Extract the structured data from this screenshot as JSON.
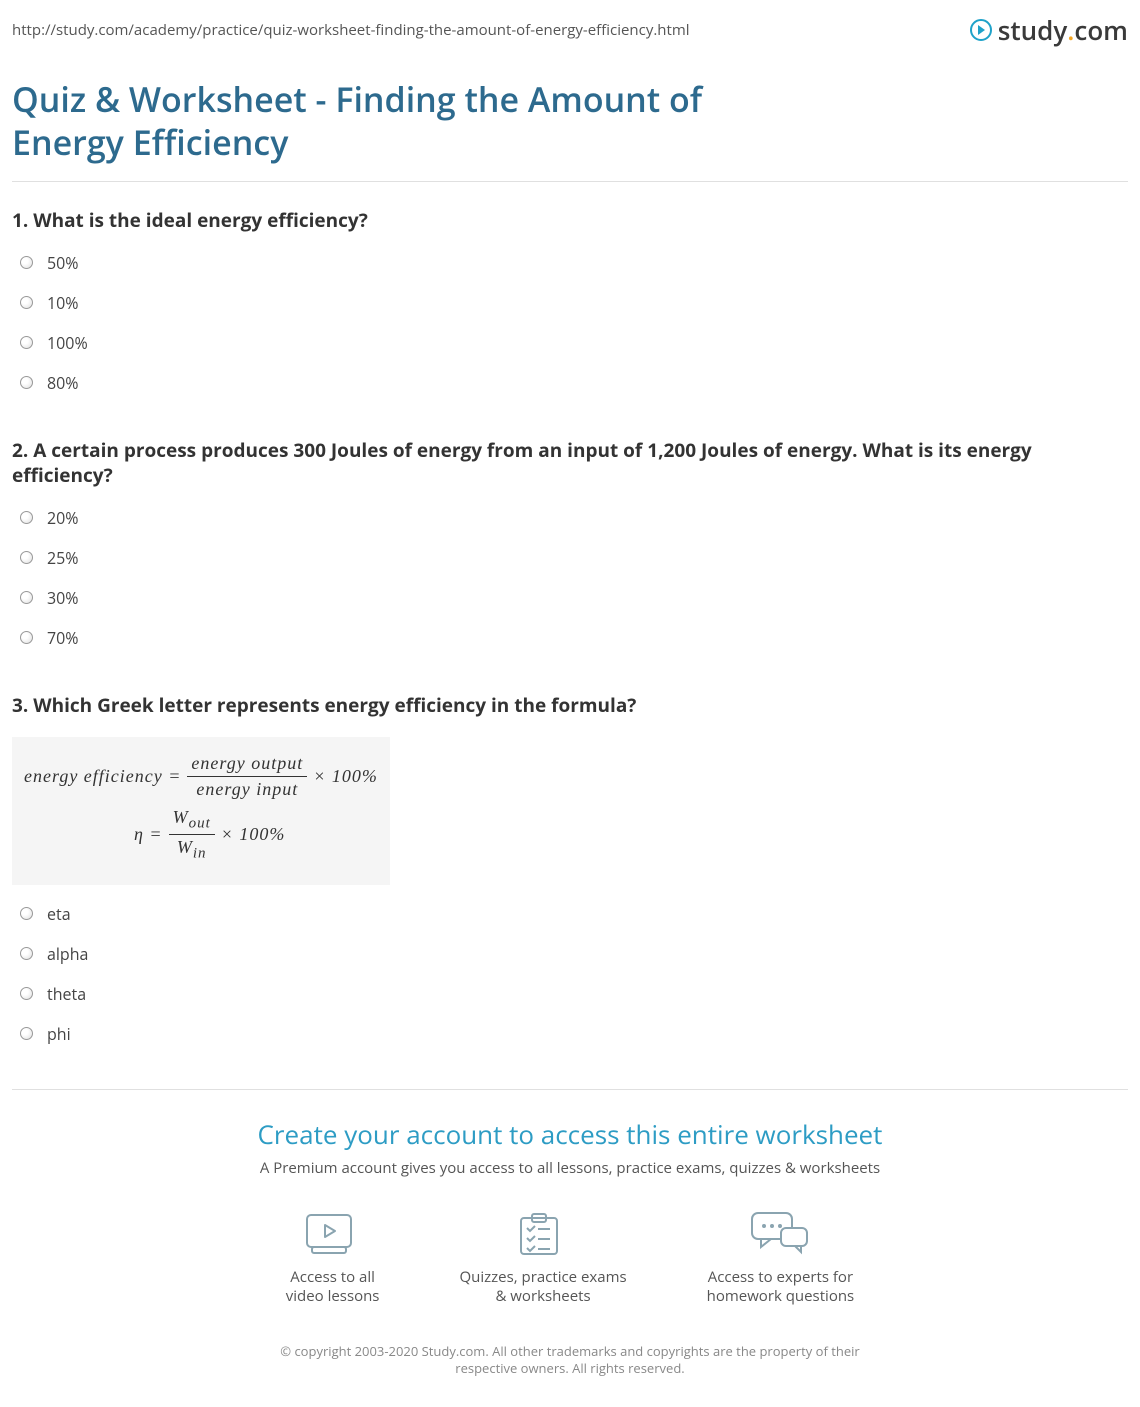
{
  "header": {
    "url": "http://study.com/academy/practice/quiz-worksheet-finding-the-amount-of-energy-efficiency.html",
    "brand_prefix": "study",
    "brand_suffix": "com"
  },
  "title": "Quiz & Worksheet - Finding the Amount of Energy Efficiency",
  "questions": [
    {
      "number": "1.",
      "text": "What is the ideal energy efficiency?",
      "options": [
        "50%",
        "10%",
        "100%",
        "80%"
      ]
    },
    {
      "number": "2.",
      "text": "A certain process produces 300 Joules of energy from an input of 1,200 Joules of energy. What is its energy efficiency?",
      "options": [
        "20%",
        "25%",
        "30%",
        "70%"
      ]
    },
    {
      "number": "3.",
      "text": "Which Greek letter represents energy efficiency in the formula?",
      "formula": {
        "line1_left": "energy efficiency =",
        "line1_num": "energy output",
        "line1_den": "energy input",
        "line1_tail": "× 100%",
        "line2_left": "η =",
        "line2_num_html": "W<sub>out</sub>",
        "line2_den_html": "W<sub>in</sub>",
        "line2_tail": "× 100%"
      },
      "options": [
        "eta",
        "alpha",
        "theta",
        "phi"
      ]
    }
  ],
  "cta": {
    "title": "Create your account to access this entire worksheet",
    "subtitle": "A Premium account gives you access to all lessons, practice exams, quizzes & worksheets",
    "features": [
      {
        "icon": "video",
        "line1": "Access to all",
        "line2": "video lessons"
      },
      {
        "icon": "checklist",
        "line1": "Quizzes, practice exams",
        "line2": "& worksheets"
      },
      {
        "icon": "chat",
        "line1": "Access to experts for",
        "line2": "homework questions"
      }
    ]
  },
  "footer": {
    "copyright": "© copyright 2003-2020 Study.com. All other trademarks and copyrights are the property of their respective owners. All rights reserved."
  },
  "colors": {
    "title_color": "#2d6a8e",
    "accent_teal": "#2d9cc4",
    "icon_stroke": "#8aa4b0",
    "logo_dot": "#f5a623"
  }
}
